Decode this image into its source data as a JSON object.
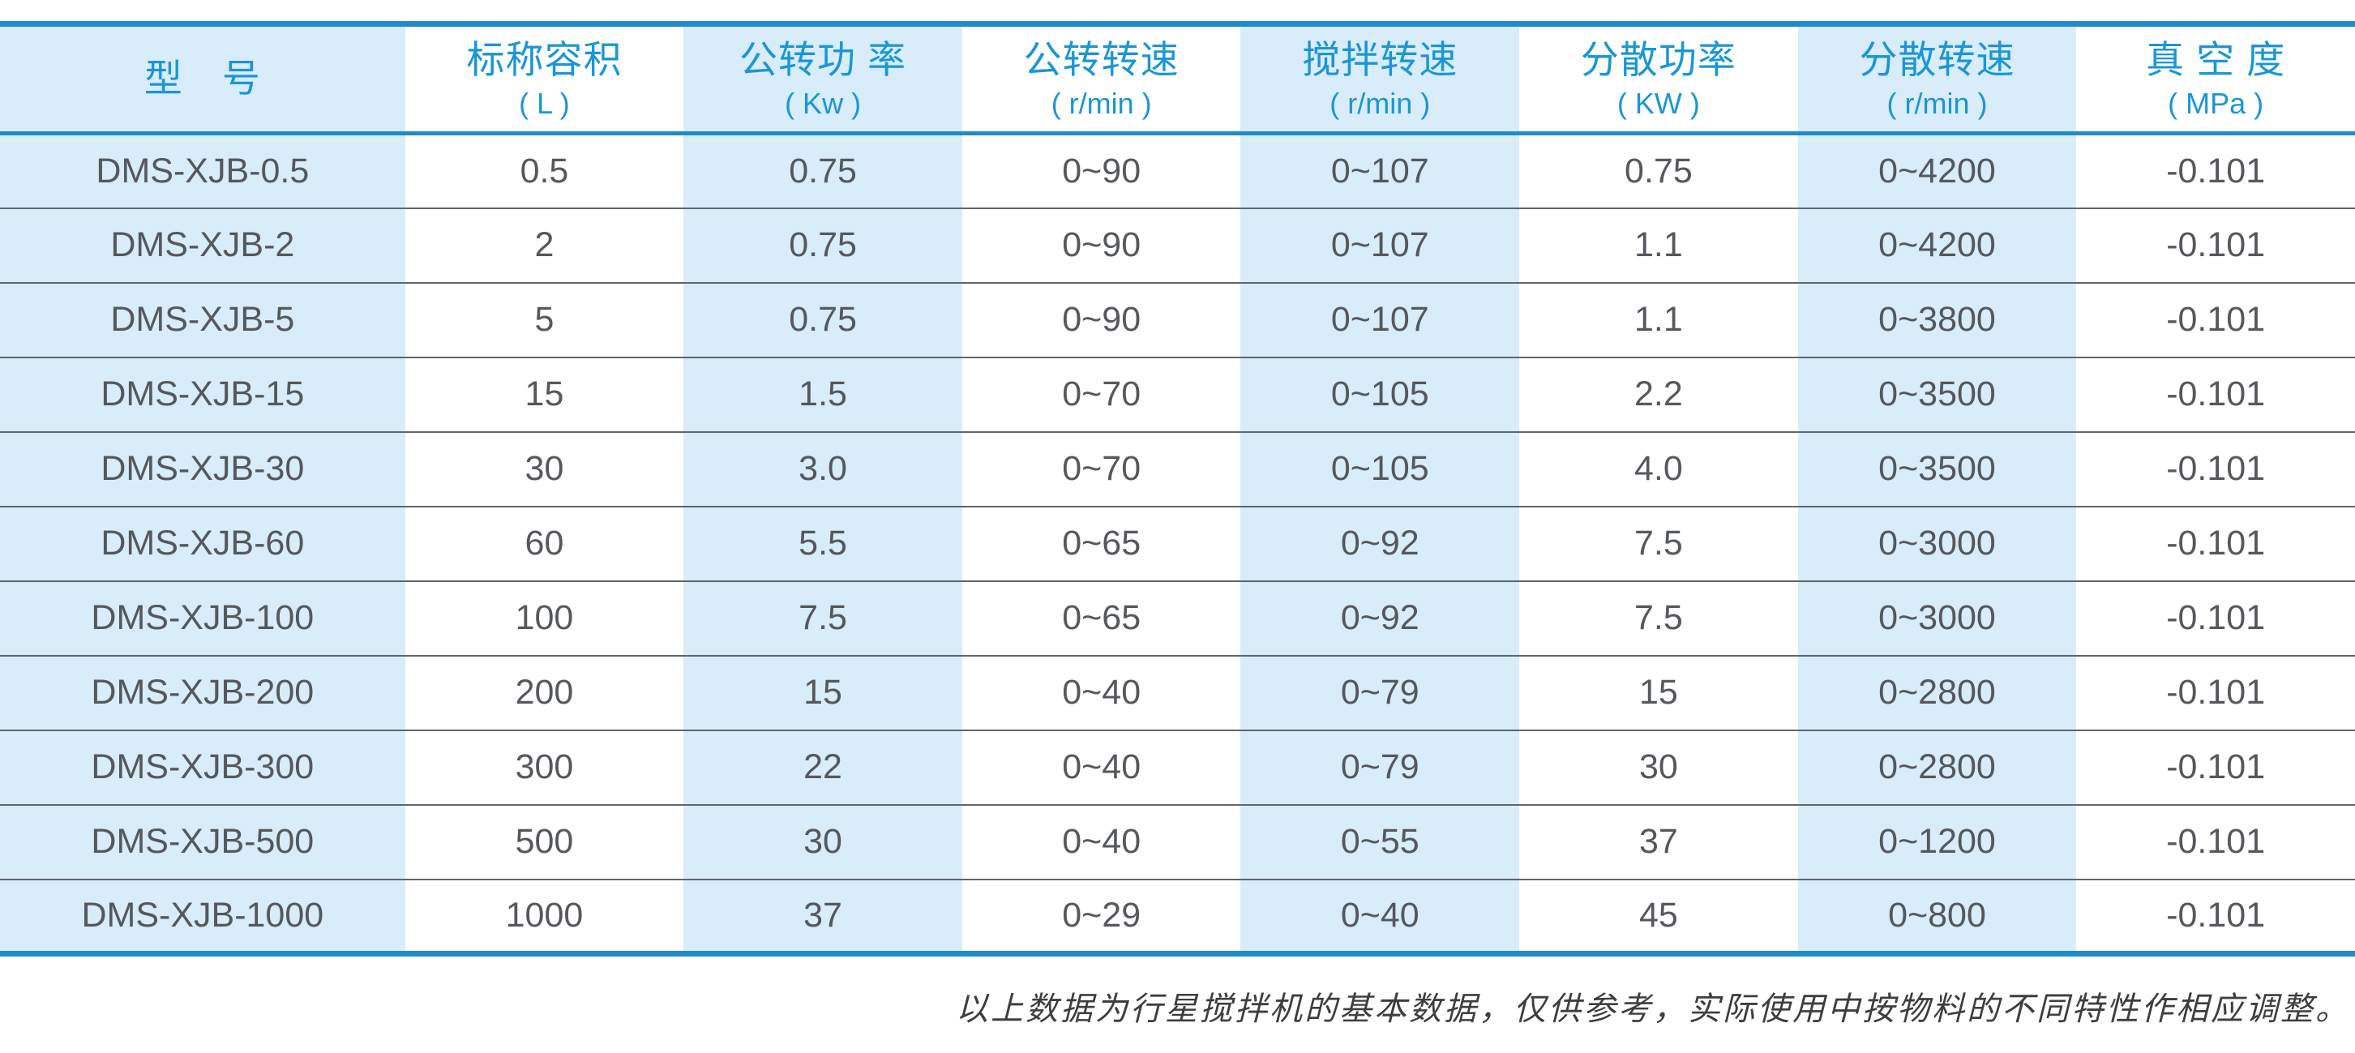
{
  "colors": {
    "accent_blue": "#1e8ccb",
    "header_text_blue": "#1b96d5",
    "light_blue_bg": "#d8ecf9",
    "row_line_gray": "#5f666c",
    "data_text_gray": "#55585c"
  },
  "table": {
    "columns": [
      {
        "title": "型　号",
        "unit": ""
      },
      {
        "title": "标称容积",
        "unit": "( L )"
      },
      {
        "title": "公转功 率",
        "unit": "( Kw )"
      },
      {
        "title": "公转转速",
        "unit": "( r/min )"
      },
      {
        "title": "搅拌转速",
        "unit": "( r/min )"
      },
      {
        "title": "分散功率",
        "unit": "( KW )"
      },
      {
        "title": "分散转速",
        "unit": "( r/min )"
      },
      {
        "title": "真 空 度",
        "unit": "( MPa )"
      }
    ],
    "rows": [
      [
        "DMS-XJB-0.5",
        "0.5",
        "0.75",
        "0~90",
        "0~107",
        "0.75",
        "0~4200",
        "-0.101"
      ],
      [
        "DMS-XJB-2",
        "2",
        "0.75",
        "0~90",
        "0~107",
        "1.1",
        "0~4200",
        "-0.101"
      ],
      [
        "DMS-XJB-5",
        "5",
        "0.75",
        "0~90",
        "0~107",
        "1.1",
        "0~3800",
        "-0.101"
      ],
      [
        "DMS-XJB-15",
        "15",
        "1.5",
        "0~70",
        "0~105",
        "2.2",
        "0~3500",
        "-0.101"
      ],
      [
        "DMS-XJB-30",
        "30",
        "3.0",
        "0~70",
        "0~105",
        "4.0",
        "0~3500",
        "-0.101"
      ],
      [
        "DMS-XJB-60",
        "60",
        "5.5",
        "0~65",
        "0~92",
        "7.5",
        "0~3000",
        "-0.101"
      ],
      [
        "DMS-XJB-100",
        "100",
        "7.5",
        "0~65",
        "0~92",
        "7.5",
        "0~3000",
        "-0.101"
      ],
      [
        "DMS-XJB-200",
        "200",
        "15",
        "0~40",
        "0~79",
        "15",
        "0~2800",
        "-0.101"
      ],
      [
        "DMS-XJB-300",
        "300",
        "22",
        "0~40",
        "0~79",
        "30",
        "0~2800",
        "-0.101"
      ],
      [
        "DMS-XJB-500",
        "500",
        "30",
        "0~40",
        "0~55",
        "37",
        "0~1200",
        "-0.101"
      ],
      [
        "DMS-XJB-1000",
        "1000",
        "37",
        "0~29",
        "0~40",
        "45",
        "0~800",
        "-0.101"
      ]
    ]
  },
  "page": {
    "footnote": "以上数据为行星搅拌机的基本数据，仅供参考，实际使用中按物料的不同特性作相应调整。"
  }
}
